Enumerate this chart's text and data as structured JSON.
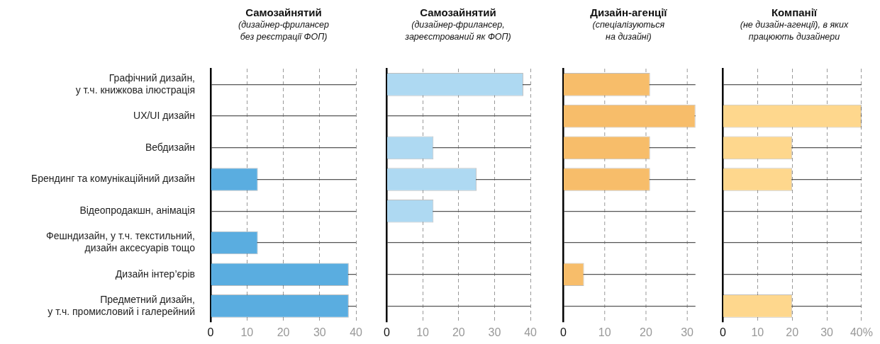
{
  "chart_data": [
    {
      "type": "bar",
      "orientation": "horizontal",
      "title": "Самозайнятий",
      "subtitle": "(дизайнер-фрилансер\nбез реєстрації ФОП)",
      "categories": [
        "Графічний дизайн,\nу т.ч. книжкова ілюстрація",
        "UX/UI дизайн",
        "Вебдизайн",
        "Брендинг та комунікаційний дизайн",
        "Відеопродакшн, анімація",
        "Фешндизайн, у т.ч. текстильний,\nдизайн аксесуарів тощо",
        "Дизайн інтер’єрів",
        "Предметний дизайн,\nу т.ч. промисловий і галерейний"
      ],
      "values": [
        null,
        null,
        null,
        13,
        null,
        13,
        38,
        38
      ],
      "color": "#5aade0",
      "xlim": [
        0,
        40
      ],
      "xticks": [
        0,
        10,
        20,
        30,
        40
      ],
      "grid": true
    },
    {
      "type": "bar",
      "orientation": "horizontal",
      "title": "Самозайнятий",
      "subtitle": "(дизайнер-фрилансер,\nзареєстрований як ФОП)",
      "values": [
        38,
        null,
        13,
        25,
        13,
        null,
        null,
        null
      ],
      "color": "#aed9f2",
      "xlim": [
        0,
        40
      ],
      "xticks": [
        0,
        10,
        20,
        30,
        40
      ],
      "grid": true,
      "tick_labels": "x"
    },
    {
      "type": "bar",
      "orientation": "horizontal",
      "title": "Дизайн-агенції",
      "subtitle": "(спеціалізуються\nна дизайні)",
      "values": [
        21,
        32,
        21,
        21,
        null,
        null,
        5,
        null
      ],
      "color": "#f7bd6a",
      "xlim": [
        0,
        32
      ],
      "xticks": [
        0,
        10,
        20,
        30
      ],
      "grid": true,
      "tick_labels": "x"
    },
    {
      "type": "bar",
      "orientation": "horizontal",
      "title": "Компанії",
      "subtitle": "(не дизайн-агенції), в яких\nпрацюють дизайнери",
      "values": [
        null,
        40,
        20,
        20,
        null,
        null,
        null,
        20
      ],
      "color": "#fed78d",
      "xlim": [
        0,
        40
      ],
      "xticks": [
        0,
        10,
        20,
        30,
        {
          "value": 40,
          "label": "40%"
        }
      ],
      "grid": true,
      "tick_labels": "x"
    }
  ]
}
